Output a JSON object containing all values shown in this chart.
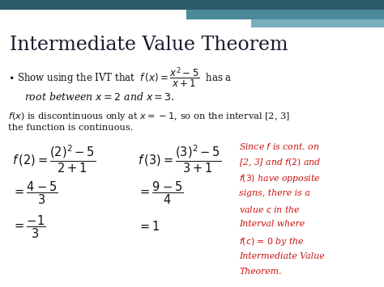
{
  "title": "Intermediate Value Theorem",
  "bg_color": "#ffffff",
  "header_bar_dark": "#2d5a6b",
  "header_bar_mid": "#4a8a9a",
  "header_bar_light": "#7ab0bc",
  "title_color": "#1a1a2e",
  "black_color": "#111111",
  "red_color": "#cc1111",
  "title_fontsize": 17,
  "body_fontsize": 8.5,
  "math_fontsize": 9.0,
  "small_fontsize": 7.8,
  "red_text_lines": [
    "Since $f$ is cont. on",
    "[2, 3] and $f(2)$ and",
    "$f(3)$ have opposite",
    "signs, there is a",
    "value $c$ in the",
    "Interval where",
    "$f(c)$ = $0$ by the",
    "Intermediate Value",
    "Theorem."
  ]
}
